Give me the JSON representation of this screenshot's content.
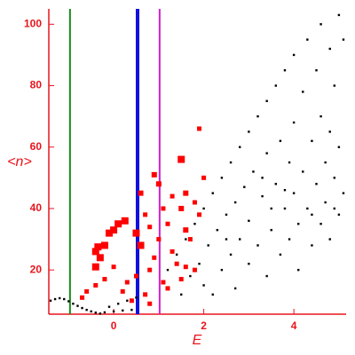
{
  "chart_data": {
    "type": "scatter",
    "x_label": "E",
    "y_label": "<n>",
    "xlim": [
      -1.44,
      5.16
    ],
    "ylim": [
      5.6,
      105
    ],
    "xticks": [
      0,
      2,
      4
    ],
    "yticks": [
      20,
      40,
      60,
      80,
      100
    ],
    "axis_color": "#e8141c",
    "vlines": [
      {
        "x": -0.97,
        "color": "#1a8a1a",
        "width": 2
      },
      {
        "x": 0.53,
        "color": "#1010e0",
        "width": 4
      },
      {
        "x": 1.02,
        "color": "#d020d0",
        "width": 2
      }
    ],
    "series": [
      {
        "color": "#000000",
        "x": [
          -1.4,
          -1.3,
          -1.2,
          -1.1,
          -1.0,
          -0.9,
          -0.8,
          -0.7,
          -0.6,
          -0.5,
          -0.4,
          -0.3,
          -0.2,
          0,
          0.2,
          0.4,
          -0.1,
          0.1,
          0.3,
          0.5,
          1.2,
          1.4,
          1.5,
          1.6,
          1.7,
          1.8,
          1.9,
          2.0,
          2.0,
          2.1,
          2.2,
          2.2,
          2.3,
          2.4,
          2.4,
          2.5,
          2.6,
          2.6,
          2.7,
          2.7,
          2.8,
          2.8,
          2.9,
          3.0,
          3.0,
          3.0,
          3.1,
          3.2,
          3.2,
          3.3,
          3.4,
          3.4,
          3.4,
          3.5,
          3.6,
          3.6,
          3.7,
          3.7,
          3.8,
          3.8,
          3.9,
          3.9,
          4.0,
          4.0,
          4.0,
          4.1,
          4.1,
          4.2,
          4.2,
          4.3,
          4.3,
          4.4,
          4.4,
          4.5,
          4.5,
          4.6,
          4.6,
          4.6,
          4.7,
          4.7,
          4.8,
          4.8,
          4.8,
          4.9,
          4.9,
          5.0,
          5.0,
          5.0,
          5.1,
          5.1,
          2.5,
          3.5,
          3.3,
          4.4,
          4.9,
          3.8
        ],
        "y": [
          10,
          10.5,
          10.8,
          10.5,
          9.8,
          9,
          8.3,
          7.6,
          7,
          6.5,
          6.1,
          5.8,
          6.2,
          6.5,
          6.8,
          7,
          8,
          9,
          10,
          11,
          20,
          25,
          12,
          30,
          18,
          35,
          22,
          40,
          15,
          28,
          45,
          12,
          33,
          50,
          20,
          38,
          55,
          25,
          42,
          14,
          60,
          30,
          47,
          65,
          22,
          36,
          52,
          70,
          28,
          44,
          75,
          18,
          58,
          33,
          80,
          48,
          25,
          62,
          85,
          40,
          55,
          30,
          90,
          68,
          45,
          20,
          35,
          78,
          52,
          95,
          40,
          62,
          28,
          85,
          48,
          100,
          70,
          35,
          55,
          42,
          92,
          65,
          30,
          80,
          50,
          103,
          38,
          60,
          95,
          45,
          30,
          40,
          50,
          38,
          40,
          46
        ],
        "sizes": [
          1.2,
          1.2,
          1.2,
          1.2,
          1.2,
          1.2,
          1.2,
          1.2,
          1.2,
          1.2,
          1.2,
          1.2,
          1.2,
          1.2,
          1.2,
          1.2,
          1.2,
          1.2,
          1.2,
          1.2,
          1.2,
          1.2,
          1.2,
          1.2,
          1.2,
          1.2,
          1.2,
          1.2,
          1.2,
          1.2,
          1.2,
          1.2,
          1.2,
          1.2,
          1.2,
          1.2,
          1.2,
          1.2,
          1.2,
          1.2,
          1.2,
          1.2,
          1.2,
          1.2,
          1.2,
          1.2,
          1.2,
          1.2,
          1.2,
          1.2,
          1.2,
          1.2,
          1.2,
          1.2,
          1.2,
          1.2,
          1.2,
          1.2,
          1.2,
          1.2,
          1.2,
          1.2,
          1.2,
          1.2,
          1.2,
          1.2,
          1.2,
          1.2,
          1.2,
          1.2,
          1.2,
          1.2,
          1.2,
          1.2,
          1.2,
          1.2,
          1.2,
          1.2,
          1.2,
          1.2,
          1.2,
          1.2,
          1.2,
          1.2,
          1.2,
          1.2,
          1.2,
          1.2,
          1.2,
          1.2,
          1.2,
          1.2,
          1.2,
          1.2,
          1.2,
          1.2
        ]
      },
      {
        "color": "#ff0000",
        "x": [
          -0.4,
          -0.3,
          -0.4,
          -0.35,
          -0.2,
          -0.1,
          0,
          0.1,
          0.25,
          0.5,
          0.6,
          0.6,
          0.9,
          1.0,
          1.5,
          1.6,
          1.9,
          1.6,
          1.5,
          0.5,
          0.7,
          0.8,
          0.9,
          1.0,
          1.1,
          1.2,
          1.3,
          1.4,
          1.5,
          1.6,
          1.7,
          1.8,
          1.9,
          2.0,
          1.2,
          0.3,
          0.2,
          0,
          -0.2,
          -0.4,
          -0.6,
          -0.7,
          0.4,
          0.8,
          1.1,
          1.8,
          0.7,
          0.8,
          1.3
        ],
        "y": [
          21,
          24,
          26,
          27.5,
          28,
          32,
          33,
          35,
          36,
          32,
          28,
          45,
          51,
          48,
          56,
          45,
          66,
          33,
          40,
          18,
          12,
          20,
          24,
          30,
          40,
          35,
          26,
          22,
          17,
          21,
          30,
          42,
          38,
          50,
          14,
          16,
          13,
          21,
          17,
          15,
          13,
          11,
          10,
          9,
          16,
          20,
          38,
          34,
          44
        ],
        "sizes": [
          4,
          4,
          4,
          4,
          4,
          4,
          4,
          4,
          4,
          4,
          4,
          3,
          3,
          3,
          4,
          3,
          2.5,
          3,
          3,
          2.5,
          2.5,
          2.5,
          2.5,
          2.5,
          2.5,
          2.5,
          2.5,
          2.5,
          2.5,
          2.5,
          2.5,
          2.5,
          2.5,
          2.5,
          2.5,
          2.5,
          2.5,
          2.5,
          2.5,
          2.5,
          2.5,
          2.5,
          2.5,
          2.5,
          2.5,
          2.5,
          2.5,
          2.5,
          2.5
        ]
      }
    ]
  }
}
